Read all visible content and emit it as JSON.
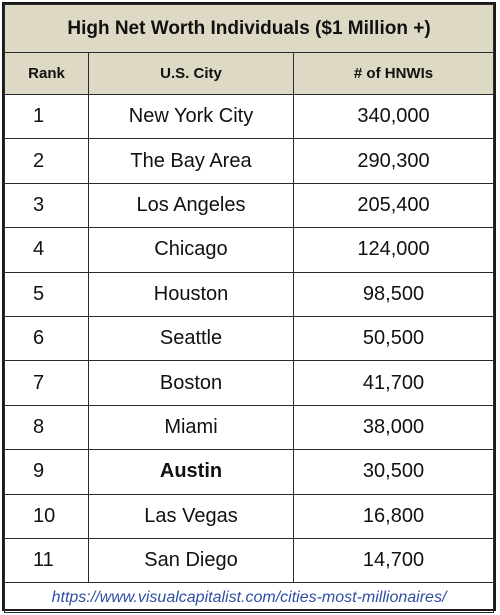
{
  "table": {
    "title": "High Net Worth Individuals ($1 Million +)",
    "headers": {
      "rank": "Rank",
      "city": "U.S. City",
      "count": "# of HNWIs"
    },
    "rows": [
      {
        "rank": "1",
        "city": "New York City",
        "count": "340,000",
        "bold": false
      },
      {
        "rank": "2",
        "city": "The Bay Area",
        "count": "290,300",
        "bold": false
      },
      {
        "rank": "3",
        "city": "Los Angeles",
        "count": "205,400",
        "bold": false
      },
      {
        "rank": "4",
        "city": "Chicago",
        "count": "124,000",
        "bold": false
      },
      {
        "rank": "5",
        "city": "Houston",
        "count": "98,500",
        "bold": false
      },
      {
        "rank": "6",
        "city": "Seattle",
        "count": "50,500",
        "bold": false
      },
      {
        "rank": "7",
        "city": "Boston",
        "count": "41,700",
        "bold": false
      },
      {
        "rank": "8",
        "city": "Miami",
        "count": "38,000",
        "bold": false
      },
      {
        "rank": "9",
        "city": "Austin",
        "count": "30,500",
        "bold": true
      },
      {
        "rank": "10",
        "city": "Las Vegas",
        "count": "16,800",
        "bold": false
      },
      {
        "rank": "11",
        "city": "San Diego",
        "count": "14,700",
        "bold": false
      }
    ],
    "source_url": "https://www.visualcapitalist.com/cities-most-millionaires/"
  },
  "colors": {
    "header_bg": "#ddd9c4",
    "link": "#2e4fa2",
    "border": "#2b2b2b"
  }
}
